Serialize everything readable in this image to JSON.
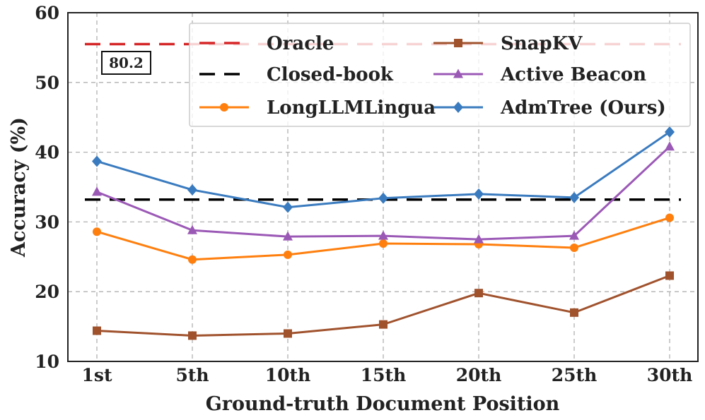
{
  "chart_data": {
    "type": "line",
    "title": "",
    "xlabel": "Ground-truth Document Position",
    "ylabel": "Accuracy (%)",
    "categories": [
      "1st",
      "5th",
      "10th",
      "15th",
      "20th",
      "25th",
      "30th"
    ],
    "ylim": [
      10,
      60
    ],
    "yticks": [
      10,
      20,
      30,
      40,
      50,
      60
    ],
    "grid": true,
    "legend_position": "top-right",
    "reference_lines": [
      {
        "name": "Oracle",
        "value": 55.5,
        "color": "#d62728",
        "style": "dashed"
      },
      {
        "name": "Closed-book",
        "value": 33.2,
        "color": "#000000",
        "style": "dashed"
      }
    ],
    "series": [
      {
        "name": "LongLLMLingua",
        "color": "#ff7f0e",
        "marker": "circle",
        "values": [
          28.6,
          24.6,
          25.3,
          26.9,
          26.8,
          26.3,
          30.6
        ]
      },
      {
        "name": "SnapKV",
        "color": "#a0522d",
        "marker": "square",
        "values": [
          14.4,
          13.7,
          14.0,
          15.3,
          19.8,
          17.0,
          22.3
        ]
      },
      {
        "name": "Active Beacon",
        "color": "#9b59b6",
        "marker": "triangle",
        "values": [
          34.3,
          28.8,
          27.9,
          28.0,
          27.5,
          28.0,
          40.8
        ]
      },
      {
        "name": "AdmTree (Ours)",
        "color": "#3a7bbf",
        "marker": "diamond",
        "values": [
          38.7,
          34.6,
          32.1,
          33.4,
          34.0,
          33.5,
          42.9
        ]
      }
    ],
    "annotation": {
      "text": "80.2"
    }
  }
}
